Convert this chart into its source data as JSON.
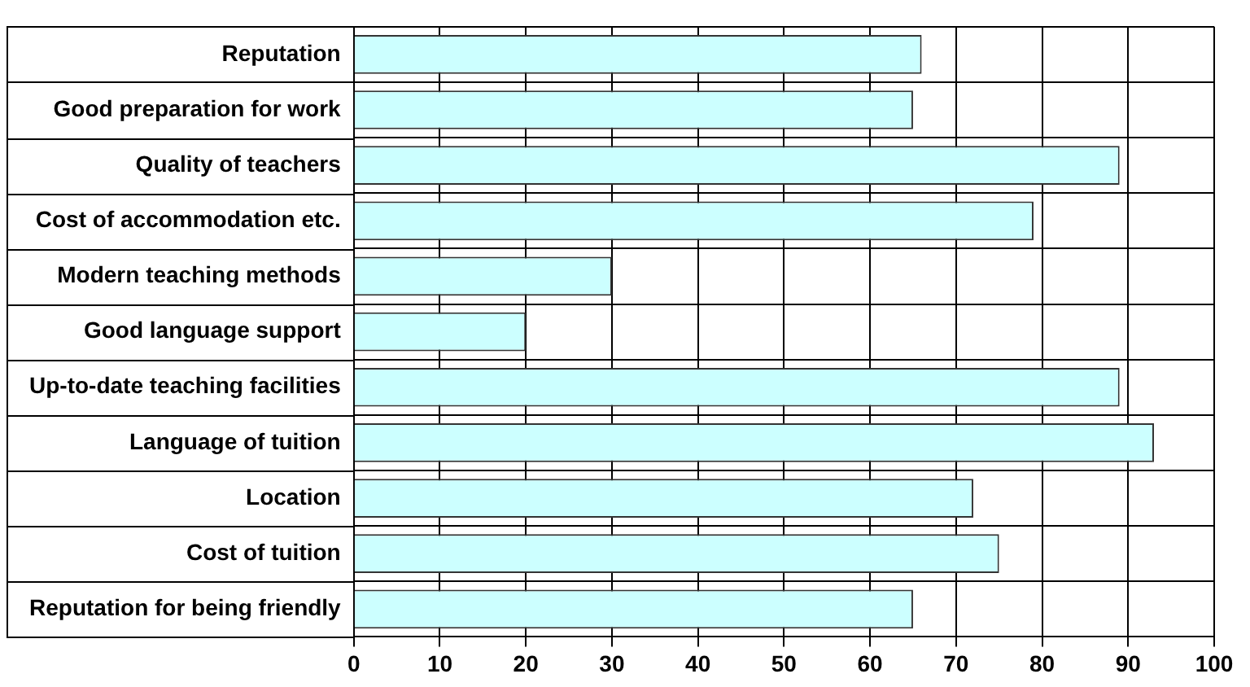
{
  "chart_data": {
    "type": "bar",
    "orientation": "horizontal",
    "categories": [
      "Reputation",
      "Good preparation for work",
      "Quality of teachers",
      "Cost of accommodation etc.",
      "Modern teaching methods",
      "Good language support",
      "Up-to-date teaching facilities",
      "Language of tuition",
      "Location",
      "Cost of tuition",
      "Reputation for being friendly"
    ],
    "values": [
      66,
      65,
      89,
      79,
      30,
      20,
      89,
      93,
      72,
      75,
      65
    ],
    "color": "#ccffff",
    "xlim": [
      0,
      100
    ],
    "xticks": [
      0,
      10,
      20,
      30,
      40,
      50,
      60,
      70,
      80,
      90,
      100
    ],
    "grid": true,
    "legend": false
  }
}
